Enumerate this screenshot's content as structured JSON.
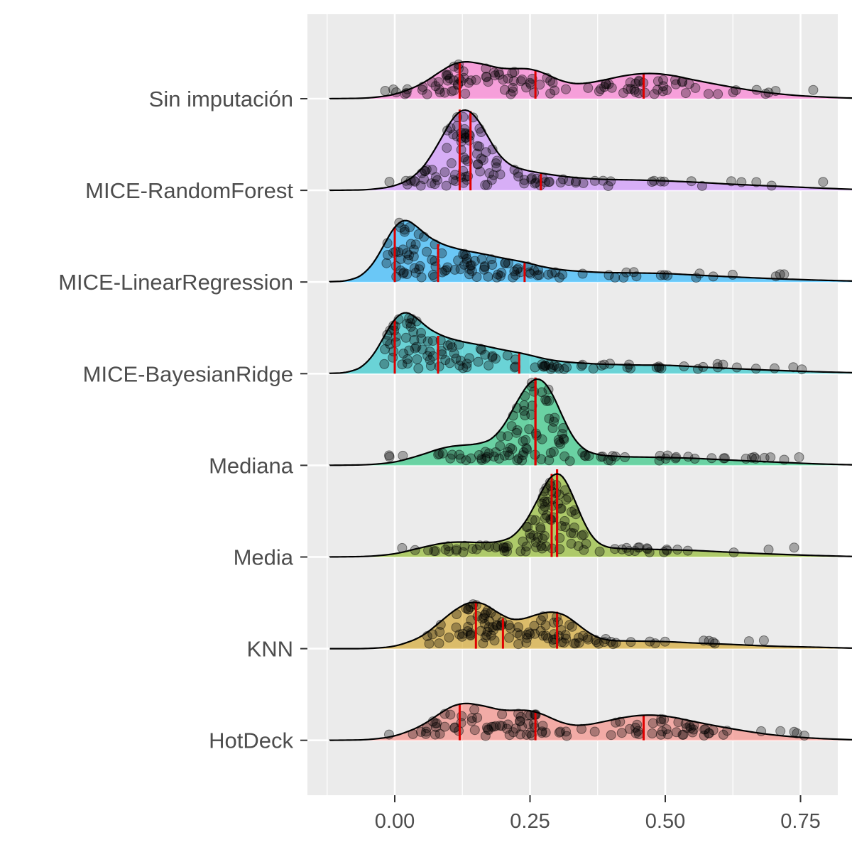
{
  "chart_data": {
    "type": "ridgeline",
    "title": "",
    "xlabel": "",
    "ylabel": "",
    "xlim": [
      -0.2,
      0.93
    ],
    "x_ticks": [
      0.0,
      0.25,
      0.5,
      0.75
    ],
    "x_tick_labels": [
      "0.00",
      "0.25",
      "0.50",
      "0.75"
    ],
    "grid": true,
    "legend": "none",
    "quantile_lines": "red vertical lines at the 25th, 50th and 75th percentiles",
    "series": [
      {
        "name": "HotDeck",
        "color": "#F8766D",
        "quantiles": [
          0.12,
          0.26,
          0.46
        ],
        "density": [
          [
            -0.12,
            0
          ],
          [
            -0.05,
            0.01
          ],
          [
            0.0,
            0.08
          ],
          [
            0.05,
            0.3
          ],
          [
            0.09,
            0.62
          ],
          [
            0.12,
            0.8
          ],
          [
            0.16,
            0.74
          ],
          [
            0.2,
            0.62
          ],
          [
            0.23,
            0.64
          ],
          [
            0.26,
            0.62
          ],
          [
            0.29,
            0.46
          ],
          [
            0.32,
            0.32
          ],
          [
            0.35,
            0.31
          ],
          [
            0.39,
            0.4
          ],
          [
            0.43,
            0.5
          ],
          [
            0.47,
            0.54
          ],
          [
            0.51,
            0.5
          ],
          [
            0.55,
            0.4
          ],
          [
            0.6,
            0.29
          ],
          [
            0.65,
            0.19
          ],
          [
            0.7,
            0.11
          ],
          [
            0.75,
            0.06
          ],
          [
            0.8,
            0.03
          ],
          [
            0.85,
            0.01
          ],
          [
            0.92,
            0
          ]
        ]
      },
      {
        "name": "KNN",
        "color": "#CD9600",
        "quantiles": [
          0.15,
          0.2,
          0.3
        ],
        "density": [
          [
            -0.12,
            0
          ],
          [
            -0.05,
            0
          ],
          [
            0.0,
            0.04
          ],
          [
            0.05,
            0.24
          ],
          [
            0.09,
            0.62
          ],
          [
            0.12,
            0.9
          ],
          [
            0.15,
            1.02
          ],
          [
            0.18,
            0.86
          ],
          [
            0.2,
            0.66
          ],
          [
            0.23,
            0.58
          ],
          [
            0.26,
            0.72
          ],
          [
            0.3,
            0.8
          ],
          [
            0.33,
            0.6
          ],
          [
            0.36,
            0.3
          ],
          [
            0.39,
            0.17
          ],
          [
            0.44,
            0.16
          ],
          [
            0.5,
            0.15
          ],
          [
            0.55,
            0.12
          ],
          [
            0.62,
            0.09
          ],
          [
            0.7,
            0.05
          ],
          [
            0.78,
            0.03
          ],
          [
            0.85,
            0.01
          ],
          [
            0.92,
            0
          ]
        ]
      },
      {
        "name": "Media",
        "color": "#7CAE00",
        "quantiles": [
          0.29,
          0.3,
          0.3
        ],
        "density": [
          [
            -0.12,
            0
          ],
          [
            -0.05,
            0.01
          ],
          [
            0.0,
            0.06
          ],
          [
            0.05,
            0.2
          ],
          [
            0.09,
            0.3
          ],
          [
            0.12,
            0.32
          ],
          [
            0.16,
            0.3
          ],
          [
            0.2,
            0.32
          ],
          [
            0.23,
            0.5
          ],
          [
            0.26,
            1.1
          ],
          [
            0.29,
            1.8
          ],
          [
            0.3,
            1.9
          ],
          [
            0.32,
            1.6
          ],
          [
            0.34,
            0.95
          ],
          [
            0.36,
            0.45
          ],
          [
            0.38,
            0.22
          ],
          [
            0.42,
            0.17
          ],
          [
            0.48,
            0.16
          ],
          [
            0.55,
            0.14
          ],
          [
            0.62,
            0.1
          ],
          [
            0.7,
            0.06
          ],
          [
            0.78,
            0.03
          ],
          [
            0.85,
            0.01
          ],
          [
            0.92,
            0
          ]
        ]
      },
      {
        "name": "Mediana",
        "color": "#00BE67",
        "quantiles": [
          0.26,
          0.26,
          0.26
        ],
        "density": [
          [
            -0.12,
            0
          ],
          [
            -0.05,
            0.01
          ],
          [
            0.0,
            0.06
          ],
          [
            0.05,
            0.22
          ],
          [
            0.09,
            0.38
          ],
          [
            0.12,
            0.42
          ],
          [
            0.16,
            0.45
          ],
          [
            0.19,
            0.6
          ],
          [
            0.22,
            1.2
          ],
          [
            0.24,
            1.65
          ],
          [
            0.26,
            1.9
          ],
          [
            0.28,
            1.8
          ],
          [
            0.3,
            1.3
          ],
          [
            0.32,
            0.75
          ],
          [
            0.34,
            0.38
          ],
          [
            0.37,
            0.22
          ],
          [
            0.42,
            0.18
          ],
          [
            0.48,
            0.17
          ],
          [
            0.55,
            0.15
          ],
          [
            0.62,
            0.11
          ],
          [
            0.7,
            0.07
          ],
          [
            0.78,
            0.03
          ],
          [
            0.85,
            0.01
          ],
          [
            0.92,
            0
          ]
        ]
      },
      {
        "name": "MICE-BayesianRidge",
        "color": "#00BFC4",
        "quantiles": [
          0.0,
          0.08,
          0.23
        ],
        "density": [
          [
            -0.12,
            0
          ],
          [
            -0.08,
            0.03
          ],
          [
            -0.05,
            0.2
          ],
          [
            -0.03,
            0.55
          ],
          [
            -0.01,
            1.0
          ],
          [
            0.01,
            1.35
          ],
          [
            0.03,
            1.3
          ],
          [
            0.05,
            1.05
          ],
          [
            0.08,
            0.82
          ],
          [
            0.12,
            0.68
          ],
          [
            0.16,
            0.6
          ],
          [
            0.2,
            0.5
          ],
          [
            0.24,
            0.42
          ],
          [
            0.28,
            0.3
          ],
          [
            0.32,
            0.24
          ],
          [
            0.38,
            0.2
          ],
          [
            0.45,
            0.18
          ],
          [
            0.5,
            0.18
          ],
          [
            0.55,
            0.15
          ],
          [
            0.62,
            0.11
          ],
          [
            0.7,
            0.07
          ],
          [
            0.78,
            0.04
          ],
          [
            0.85,
            0.02
          ],
          [
            0.92,
            0
          ]
        ]
      },
      {
        "name": "MICE-LinearRegression",
        "color": "#00A9FF",
        "quantiles": [
          0.0,
          0.08,
          0.24
        ],
        "density": [
          [
            -0.12,
            0
          ],
          [
            -0.08,
            0.03
          ],
          [
            -0.05,
            0.2
          ],
          [
            -0.03,
            0.55
          ],
          [
            -0.01,
            1.0
          ],
          [
            0.01,
            1.38
          ],
          [
            0.03,
            1.3
          ],
          [
            0.05,
            1.05
          ],
          [
            0.08,
            0.82
          ],
          [
            0.12,
            0.68
          ],
          [
            0.16,
            0.6
          ],
          [
            0.2,
            0.5
          ],
          [
            0.24,
            0.42
          ],
          [
            0.28,
            0.3
          ],
          [
            0.32,
            0.24
          ],
          [
            0.38,
            0.2
          ],
          [
            0.45,
            0.19
          ],
          [
            0.5,
            0.18
          ],
          [
            0.55,
            0.15
          ],
          [
            0.62,
            0.11
          ],
          [
            0.7,
            0.07
          ],
          [
            0.78,
            0.04
          ],
          [
            0.85,
            0.02
          ],
          [
            0.92,
            0
          ]
        ]
      },
      {
        "name": "MICE-RandomForest",
        "color": "#C77CFF",
        "quantiles": [
          0.12,
          0.14,
          0.27
        ],
        "density": [
          [
            -0.12,
            0
          ],
          [
            -0.05,
            0.01
          ],
          [
            0.0,
            0.08
          ],
          [
            0.04,
            0.3
          ],
          [
            0.07,
            0.75
          ],
          [
            0.1,
            1.4
          ],
          [
            0.12,
            1.75
          ],
          [
            0.14,
            1.72
          ],
          [
            0.16,
            1.4
          ],
          [
            0.18,
            0.95
          ],
          [
            0.2,
            0.6
          ],
          [
            0.23,
            0.45
          ],
          [
            0.27,
            0.36
          ],
          [
            0.32,
            0.28
          ],
          [
            0.38,
            0.23
          ],
          [
            0.44,
            0.22
          ],
          [
            0.5,
            0.2
          ],
          [
            0.56,
            0.17
          ],
          [
            0.62,
            0.13
          ],
          [
            0.7,
            0.09
          ],
          [
            0.78,
            0.05
          ],
          [
            0.85,
            0.02
          ],
          [
            0.92,
            0
          ]
        ]
      },
      {
        "name": "Sin imputación",
        "color": "#FF61CC",
        "quantiles": [
          0.12,
          0.26,
          0.46
        ],
        "density": [
          [
            -0.12,
            0
          ],
          [
            -0.05,
            0.01
          ],
          [
            0.0,
            0.08
          ],
          [
            0.05,
            0.3
          ],
          [
            0.09,
            0.62
          ],
          [
            0.12,
            0.8
          ],
          [
            0.16,
            0.74
          ],
          [
            0.2,
            0.62
          ],
          [
            0.23,
            0.64
          ],
          [
            0.26,
            0.62
          ],
          [
            0.29,
            0.46
          ],
          [
            0.32,
            0.32
          ],
          [
            0.35,
            0.31
          ],
          [
            0.39,
            0.4
          ],
          [
            0.43,
            0.5
          ],
          [
            0.47,
            0.54
          ],
          [
            0.51,
            0.5
          ],
          [
            0.55,
            0.4
          ],
          [
            0.6,
            0.29
          ],
          [
            0.65,
            0.19
          ],
          [
            0.7,
            0.11
          ],
          [
            0.75,
            0.06
          ],
          [
            0.8,
            0.03
          ],
          [
            0.85,
            0.01
          ],
          [
            0.92,
            0
          ]
        ]
      }
    ]
  }
}
